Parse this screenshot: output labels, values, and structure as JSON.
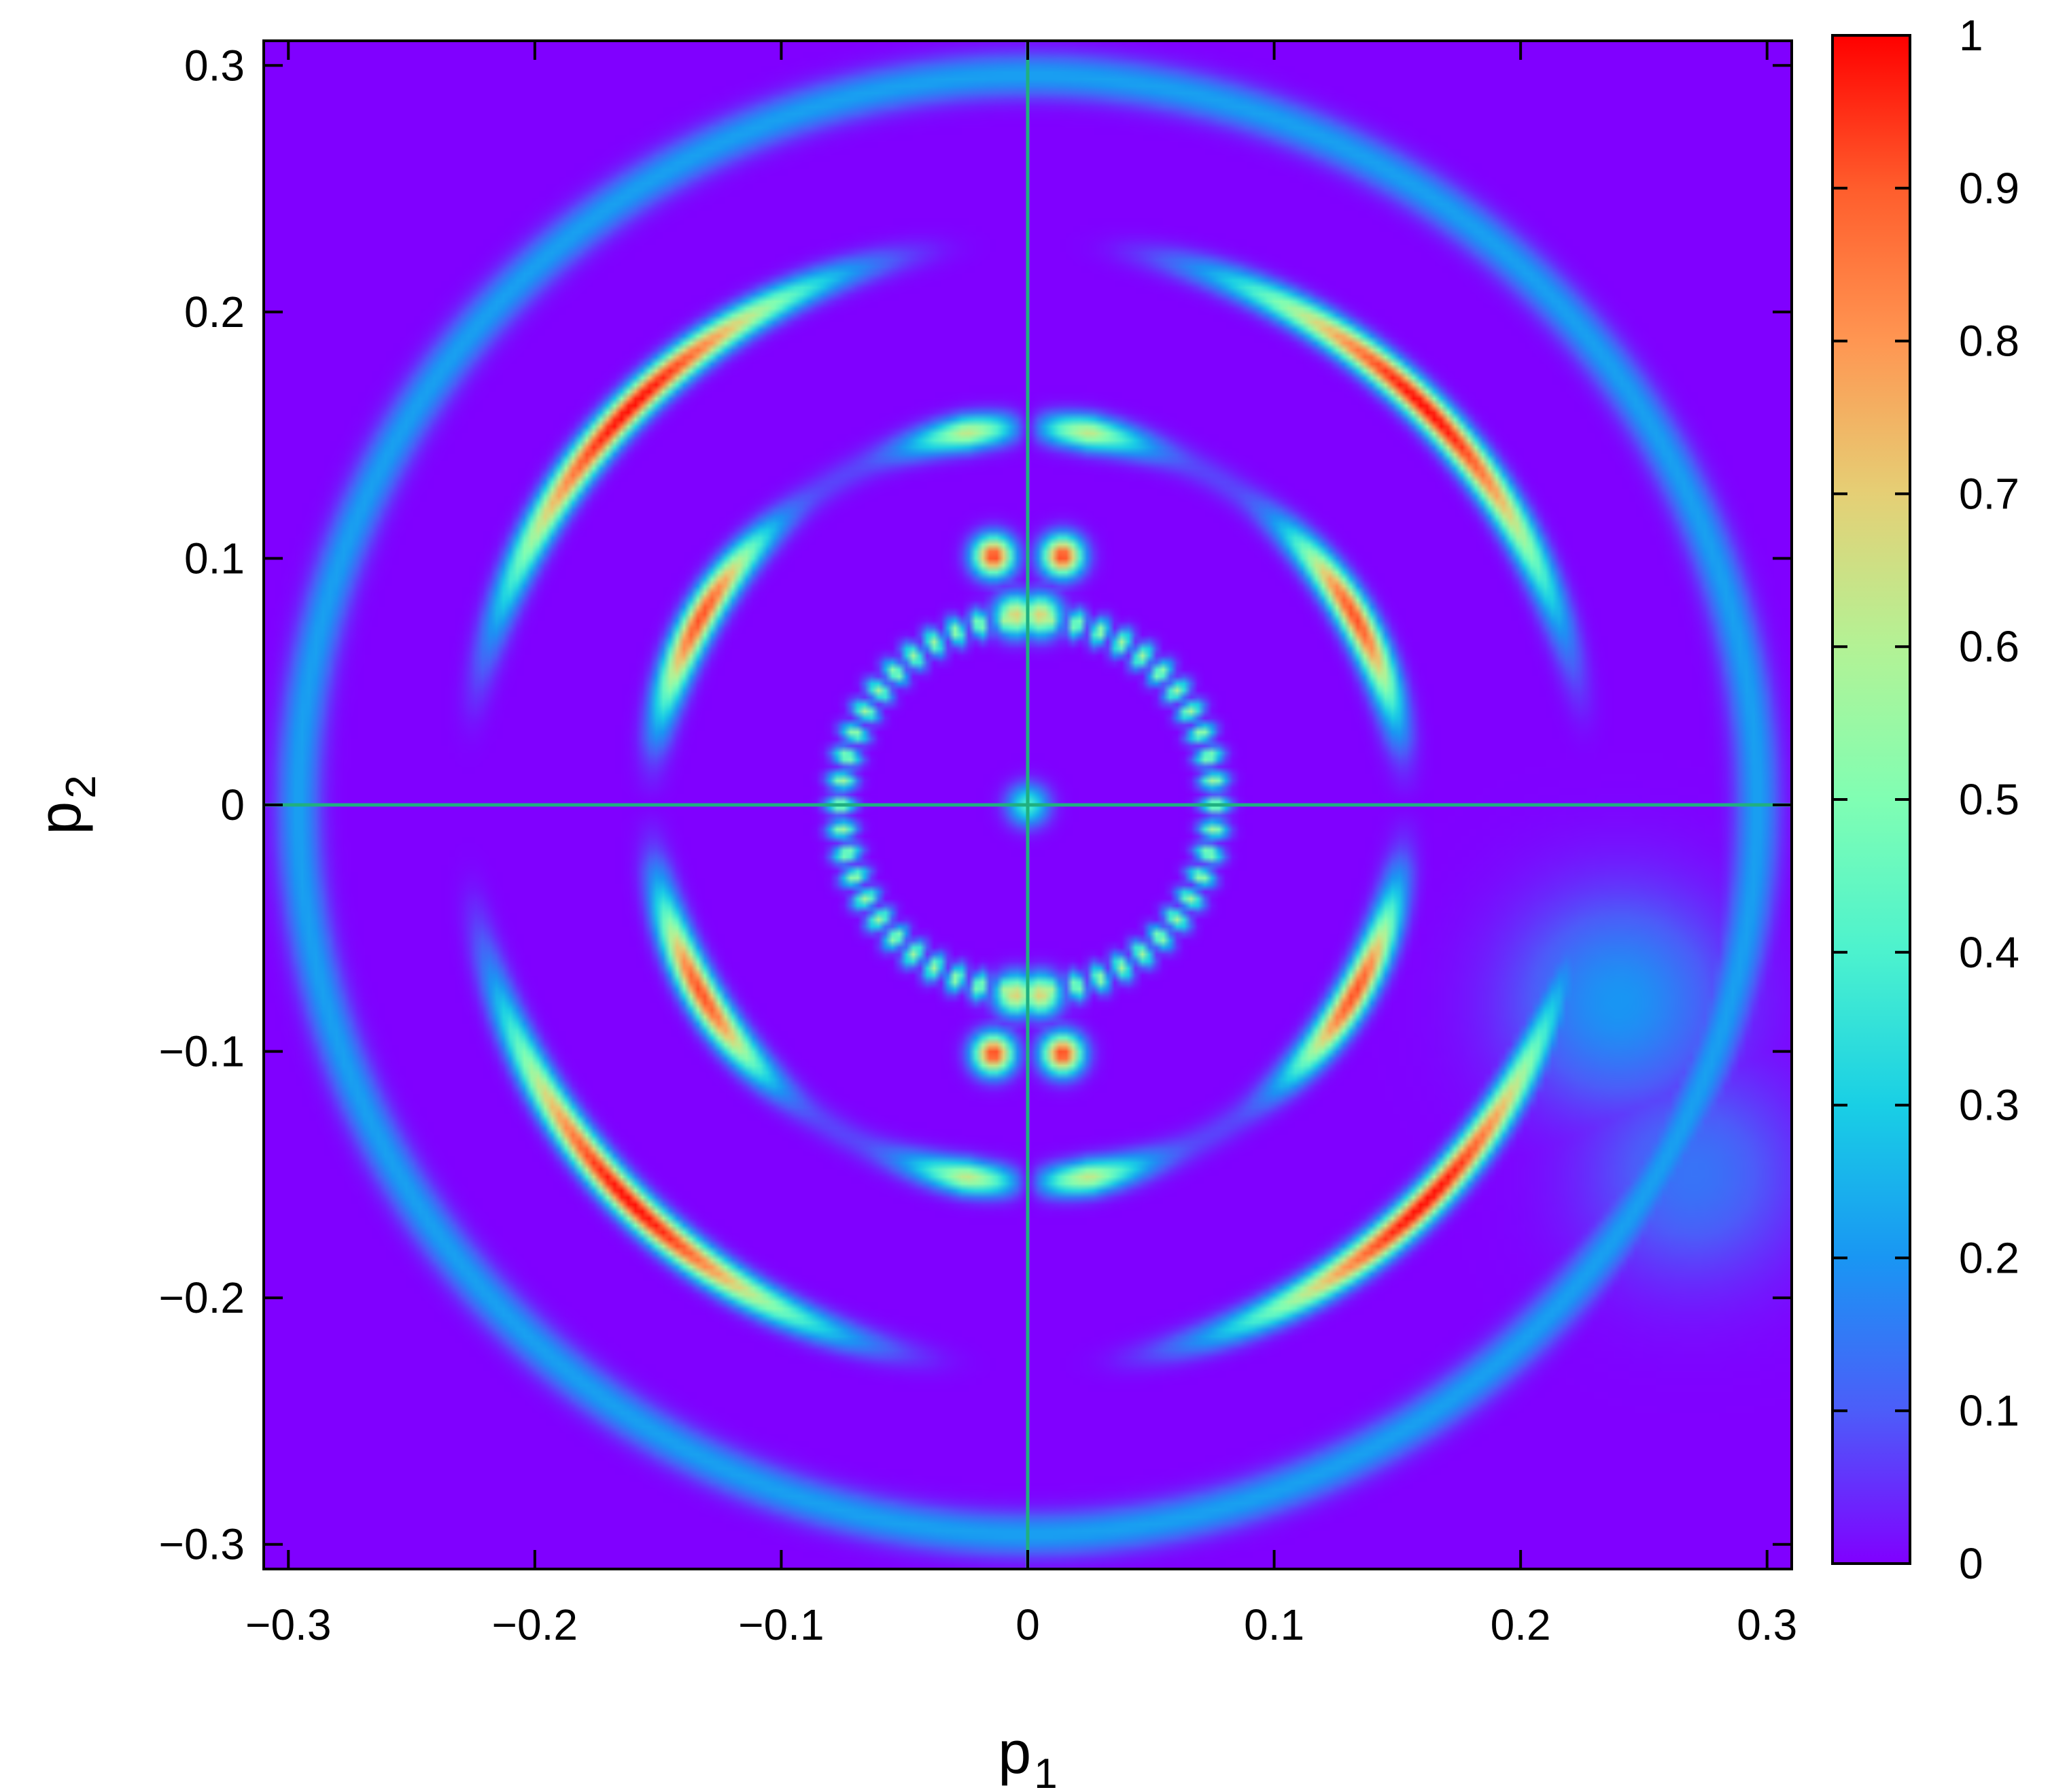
{
  "chart_data": {
    "type": "heatmap",
    "title": "",
    "xlabel": {
      "main": "p",
      "sub": "1"
    },
    "ylabel": {
      "main": "p",
      "sub": "2"
    },
    "xlim": [
      -0.31,
      0.31
    ],
    "ylim": [
      -0.31,
      0.31
    ],
    "x_ticks": [
      {
        "value": -0.3,
        "label": "−0.3"
      },
      {
        "value": -0.2,
        "label": "−0.2"
      },
      {
        "value": -0.1,
        "label": "−0.1"
      },
      {
        "value": 0,
        "label": "0"
      },
      {
        "value": 0.1,
        "label": "0.1"
      },
      {
        "value": 0.2,
        "label": "0.2"
      },
      {
        "value": 0.3,
        "label": "0.3"
      }
    ],
    "y_ticks": [
      {
        "value": -0.3,
        "label": "−0.3"
      },
      {
        "value": -0.2,
        "label": "−0.2"
      },
      {
        "value": -0.1,
        "label": "−0.1"
      },
      {
        "value": 0,
        "label": "0"
      },
      {
        "value": 0.1,
        "label": "0.1"
      },
      {
        "value": 0.2,
        "label": "0.2"
      },
      {
        "value": 0.3,
        "label": "0.3"
      }
    ],
    "grid": false,
    "reference_lines": {
      "x": 0,
      "y": 0,
      "color": "#20b080"
    },
    "colorbar": {
      "range": [
        0,
        1
      ],
      "ticks": [
        {
          "value": 0,
          "label": "0"
        },
        {
          "value": 0.1,
          "label": "0.1"
        },
        {
          "value": 0.2,
          "label": "0.2"
        },
        {
          "value": 0.3,
          "label": "0.3"
        },
        {
          "value": 0.4,
          "label": "0.4"
        },
        {
          "value": 0.5,
          "label": "0.5"
        },
        {
          "value": 0.6,
          "label": "0.6"
        },
        {
          "value": 0.7,
          "label": "0.7"
        },
        {
          "value": 0.8,
          "label": "0.8"
        },
        {
          "value": 0.9,
          "label": "0.9"
        },
        {
          "value": 1,
          "label": "1"
        }
      ],
      "colors": [
        "#8000ff",
        "#4c5df9",
        "#1996f3",
        "#19cfe5",
        "#4cf2ce",
        "#80feb3",
        "#b3f295",
        "#e5cf75",
        "#ff9652",
        "#ff5d2c",
        "#ff0000"
      ]
    },
    "features": [
      {
        "kind": "dots",
        "radius": 0.076,
        "count": 48,
        "intensity": 0.58,
        "angular_width": 2.2
      },
      {
        "kind": "ring_modulated",
        "radius": 0.153,
        "intensity": 0.92,
        "harmonic": 6,
        "floor": 0.08
      },
      {
        "kind": "ring_modulated",
        "radius": 0.228,
        "intensity": 1.0,
        "harmonic": 4,
        "floor": 0.0
      },
      {
        "kind": "ring",
        "radius": 0.296,
        "intensity": 0.22,
        "radial_width": 0.006
      },
      {
        "kind": "blob",
        "x": 0.014,
        "y": 0.101,
        "intensity": 0.95
      },
      {
        "kind": "blob",
        "x": -0.014,
        "y": 0.101,
        "intensity": 0.95
      },
      {
        "kind": "blob",
        "x": 0.014,
        "y": -0.101,
        "intensity": 0.95
      },
      {
        "kind": "blob",
        "x": -0.014,
        "y": -0.101,
        "intensity": 0.95
      },
      {
        "kind": "blob",
        "x": 0.005,
        "y": 0.077,
        "intensity": 0.7
      },
      {
        "kind": "blob",
        "x": -0.005,
        "y": 0.077,
        "intensity": 0.7
      },
      {
        "kind": "blob",
        "x": 0.005,
        "y": -0.077,
        "intensity": 0.7
      },
      {
        "kind": "blob",
        "x": -0.005,
        "y": -0.077,
        "intensity": 0.7
      },
      {
        "kind": "blob",
        "x": 0.0,
        "y": 0.0,
        "intensity": 0.4
      },
      {
        "kind": "patch",
        "x": 0.24,
        "y": -0.08,
        "intensity": 0.2
      },
      {
        "kind": "patch",
        "x": 0.27,
        "y": -0.15,
        "intensity": 0.14
      }
    ]
  }
}
